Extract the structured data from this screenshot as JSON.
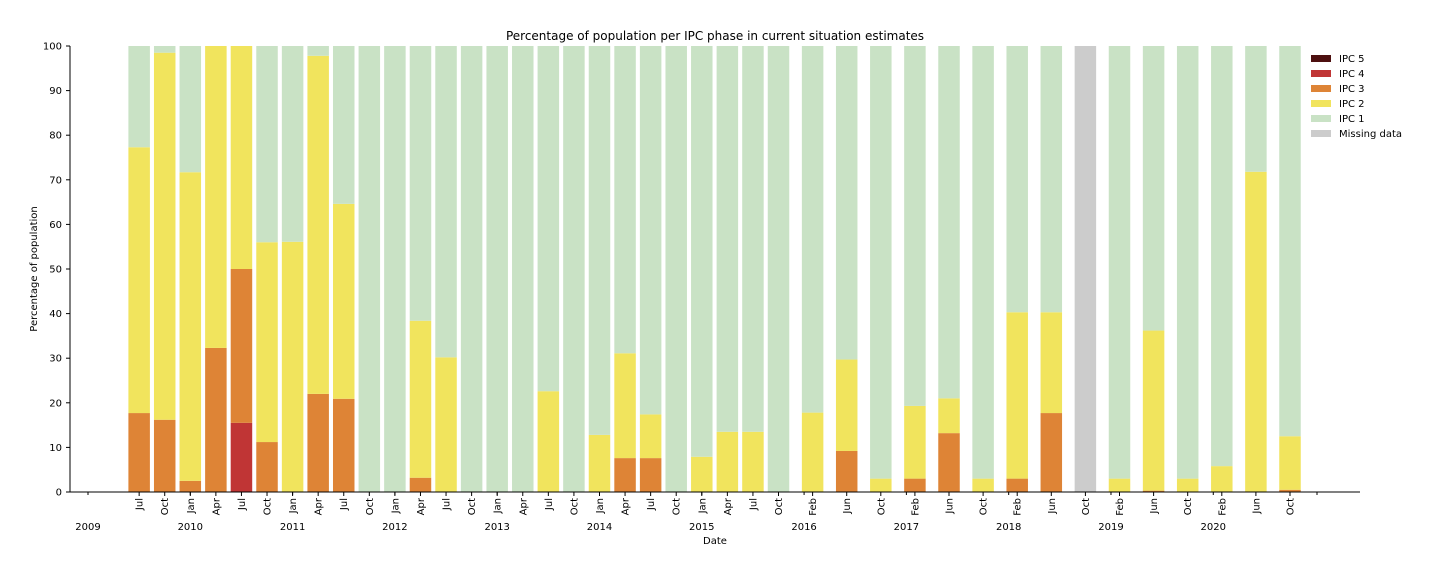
{
  "chart_data": {
    "type": "bar",
    "stacked": true,
    "title": "Percentage of population per IPC phase in current situation estimates",
    "xlabel": "Date",
    "ylabel": "Percentage of population",
    "ylim": [
      0,
      100
    ],
    "yticks": [
      0,
      10,
      20,
      30,
      40,
      50,
      60,
      70,
      80,
      90,
      100
    ],
    "grid": false,
    "legend_position": "top-right",
    "categories": [
      "Jul",
      "Oct",
      "Jan",
      "Apr",
      "Jul",
      "Oct",
      "Jan",
      "Apr",
      "Jul",
      "Oct",
      "Jan",
      "Apr",
      "Jul",
      "Oct",
      "Jan",
      "Apr",
      "Jul",
      "Oct",
      "Jan",
      "Apr",
      "Jul",
      "Oct",
      "Jan",
      "Apr",
      "Jul",
      "Oct",
      "Feb",
      "Jun",
      "Oct",
      "Feb",
      "Jun",
      "Oct",
      "Feb",
      "Jun",
      "Oct",
      "Feb",
      "Jun",
      "Oct",
      "Feb",
      "Jun",
      "Oct"
    ],
    "category_dates": [
      "2009-07",
      "2009-10",
      "2010-01",
      "2010-04",
      "2010-07",
      "2010-10",
      "2011-01",
      "2011-04",
      "2011-07",
      "2011-10",
      "2012-01",
      "2012-04",
      "2012-07",
      "2012-10",
      "2013-01",
      "2013-04",
      "2013-07",
      "2013-10",
      "2014-01",
      "2014-04",
      "2014-07",
      "2014-10",
      "2015-01",
      "2015-04",
      "2015-07",
      "2015-10",
      "2016-02",
      "2016-06",
      "2016-10",
      "2017-02",
      "2017-06",
      "2017-10",
      "2018-02",
      "2018-06",
      "2018-10",
      "2019-02",
      "2019-06",
      "2019-10",
      "2020-02",
      "2020-06",
      "2020-10"
    ],
    "year_labels": [
      {
        "label": "2009",
        "date": "2009-01"
      },
      {
        "label": "2010",
        "date": "2010-01"
      },
      {
        "label": "2011",
        "date": "2011-01"
      },
      {
        "label": "2012",
        "date": "2012-01"
      },
      {
        "label": "2013",
        "date": "2013-01"
      },
      {
        "label": "2014",
        "date": "2014-01"
      },
      {
        "label": "2015",
        "date": "2015-01"
      },
      {
        "label": "2016",
        "date": "2016-01"
      },
      {
        "label": "2017",
        "date": "2017-01"
      },
      {
        "label": "2018",
        "date": "2018-01"
      },
      {
        "label": "2019",
        "date": "2019-01"
      },
      {
        "label": "2020",
        "date": "2020-01"
      }
    ],
    "series": [
      {
        "name": "IPC 5",
        "color": "#4d1010",
        "values": [
          0,
          0,
          0,
          0,
          0,
          0,
          0,
          0,
          0,
          0,
          0,
          0,
          0,
          0,
          0,
          0,
          0,
          0,
          0,
          0,
          0,
          0,
          0,
          0,
          0,
          0,
          0,
          0,
          0,
          0,
          0,
          0,
          0,
          0,
          0,
          0,
          0,
          0,
          0,
          0,
          0
        ]
      },
      {
        "name": "IPC 4",
        "color": "#c03535",
        "values": [
          0,
          0,
          0,
          0,
          15.5,
          0,
          0,
          0,
          0,
          0,
          0,
          0,
          0,
          0,
          0,
          0,
          0,
          0,
          0,
          0,
          0,
          0,
          0,
          0,
          0,
          0,
          0,
          0,
          0,
          0,
          0,
          0,
          0,
          0,
          0,
          0,
          0,
          0,
          0,
          0,
          0
        ]
      },
      {
        "name": "IPC 3",
        "color": "#de8436",
        "values": [
          17.7,
          16.2,
          2.5,
          32.3,
          34.5,
          11.2,
          0,
          22,
          20.9,
          0,
          0,
          3.2,
          0,
          0,
          0,
          0,
          0,
          0,
          0,
          7.6,
          7.6,
          0,
          0,
          0,
          0,
          0,
          0,
          9.2,
          0,
          3,
          13.2,
          0,
          3,
          17.7,
          0,
          0,
          0.3,
          0,
          0,
          0,
          0.5
        ]
      },
      {
        "name": "IPC 2",
        "color": "#f1e45d",
        "values": [
          59.6,
          82.3,
          69.2,
          67.7,
          50,
          44.8,
          56.1,
          75.8,
          43.7,
          0,
          0,
          35.2,
          30.2,
          0,
          0,
          0,
          22.6,
          0,
          12.8,
          23.5,
          9.8,
          0,
          7.9,
          13.5,
          13.5,
          0,
          17.8,
          20.5,
          3,
          16.3,
          7.8,
          3,
          37.3,
          22.6,
          0,
          3,
          35.9,
          3,
          5.8,
          71.8,
          12
        ]
      },
      {
        "name": "IPC 1",
        "color": "#c9e2c5",
        "values": [
          22.7,
          1.5,
          28.3,
          0,
          0,
          44,
          43.9,
          2.2,
          35.4,
          100,
          100,
          61.6,
          69.8,
          100,
          100,
          100,
          77.4,
          100,
          87.2,
          68.9,
          82.6,
          100,
          92.1,
          86.5,
          86.5,
          100,
          82.2,
          70.3,
          97,
          80.7,
          79,
          97,
          59.7,
          59.7,
          0,
          97,
          63.8,
          97,
          94.2,
          28.2,
          87.5
        ]
      },
      {
        "name": "Missing data",
        "color": "#cccccc",
        "values": [
          0,
          0,
          0,
          0,
          0,
          0,
          0,
          0,
          0,
          0,
          0,
          0,
          0,
          0,
          0,
          0,
          0,
          0,
          0,
          0,
          0,
          0,
          0,
          0,
          0,
          0,
          0,
          0,
          0,
          0,
          0,
          0,
          0,
          0,
          100,
          0,
          0,
          0,
          0,
          0,
          0
        ]
      }
    ],
    "legend_order": [
      "IPC 5",
      "IPC 4",
      "IPC 3",
      "IPC 2",
      "IPC 1",
      "Missing data"
    ]
  }
}
